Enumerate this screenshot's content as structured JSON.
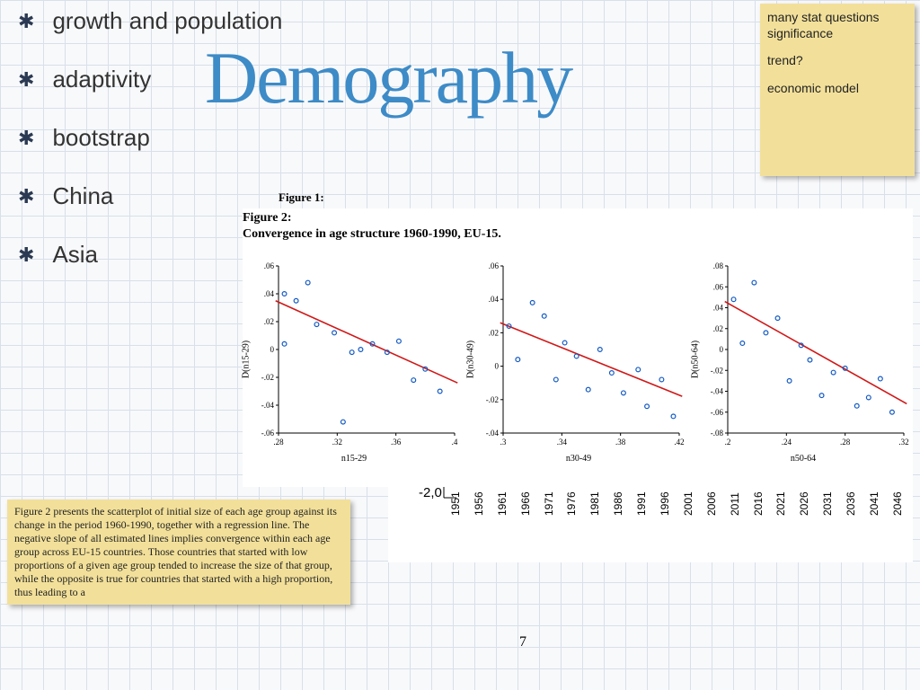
{
  "bullets": {
    "items": [
      {
        "label": "growth and population"
      },
      {
        "label": "adaptivity"
      },
      {
        "label": "bootstrap"
      },
      {
        "label": "China"
      },
      {
        "label": "Asia"
      }
    ]
  },
  "title": "Demography",
  "sticky_right": {
    "lines": [
      "many stat questions significance",
      "trend?",
      "economic model"
    ],
    "bg_color": "#f2e09a"
  },
  "sticky_bottom": {
    "text": "Figure 2 presents the scatterplot of initial size of each age group against its change in the\nperiod 1960-1990, together with a regression line. The negative slope of all estimated lines\nimplies convergence within each age group across EU-15 countries. Those countries that\nstarted with low proportions of a given age group tended to increase the size of that group,\nwhile the opposite is true for countries that started with a high proportion, thus leading to a",
    "bg_color": "#f2e09a"
  },
  "figure1_hint": "Figure 1:",
  "figure2": {
    "title_line1": "Figure 2:",
    "title_line2": "Convergence in age structure 1960-1990, EU-15.",
    "panels": [
      {
        "ylabel": "D(n15-29)",
        "xlabel": "n15-29",
        "xlim": [
          0.28,
          0.4
        ],
        "ylim": [
          -0.06,
          0.06
        ],
        "xticks": [
          0.28,
          0.32,
          0.36,
          0.4
        ],
        "yticks": [
          -0.06,
          -0.04,
          -0.02,
          0,
          0.02,
          0.04,
          0.06
        ],
        "ytick_labels": [
          "-.06",
          "-.04",
          "-.02",
          "0",
          ".02",
          ".04",
          ".06"
        ],
        "xtick_labels": [
          ".28",
          ".32",
          ".36",
          ".4"
        ],
        "points": [
          [
            0.284,
            0.04
          ],
          [
            0.292,
            0.035
          ],
          [
            0.3,
            0.048
          ],
          [
            0.306,
            0.018
          ],
          [
            0.318,
            0.012
          ],
          [
            0.324,
            -0.052
          ],
          [
            0.33,
            -0.002
          ],
          [
            0.336,
            0.0
          ],
          [
            0.344,
            0.004
          ],
          [
            0.354,
            -0.002
          ],
          [
            0.362,
            0.006
          ],
          [
            0.372,
            -0.022
          ],
          [
            0.38,
            -0.014
          ],
          [
            0.39,
            -0.03
          ],
          [
            0.284,
            0.004
          ]
        ],
        "line": {
          "x1": 0.278,
          "y1": 0.035,
          "x2": 0.402,
          "y2": -0.024
        },
        "point_color": "#1259c3",
        "line_color": "#d01818"
      },
      {
        "ylabel": "D(n30-49)",
        "xlabel": "n30-49",
        "xlim": [
          0.3,
          0.42
        ],
        "ylim": [
          -0.04,
          0.06
        ],
        "xticks": [
          0.3,
          0.34,
          0.38,
          0.42
        ],
        "yticks": [
          -0.04,
          -0.02,
          0,
          0.02,
          0.04,
          0.06
        ],
        "ytick_labels": [
          "-.04",
          "-.02",
          "0",
          ".02",
          ".04",
          ".06"
        ],
        "xtick_labels": [
          ".3",
          ".34",
          ".38",
          ".42"
        ],
        "points": [
          [
            0.304,
            0.024
          ],
          [
            0.31,
            0.004
          ],
          [
            0.32,
            0.038
          ],
          [
            0.328,
            0.03
          ],
          [
            0.336,
            -0.008
          ],
          [
            0.342,
            0.014
          ],
          [
            0.35,
            0.006
          ],
          [
            0.358,
            -0.014
          ],
          [
            0.366,
            0.01
          ],
          [
            0.374,
            -0.004
          ],
          [
            0.382,
            -0.016
          ],
          [
            0.392,
            -0.002
          ],
          [
            0.398,
            -0.024
          ],
          [
            0.408,
            -0.008
          ],
          [
            0.416,
            -0.03
          ]
        ],
        "line": {
          "x1": 0.298,
          "y1": 0.026,
          "x2": 0.422,
          "y2": -0.018
        },
        "point_color": "#1259c3",
        "line_color": "#d01818"
      },
      {
        "ylabel": "D(n50-64)",
        "xlabel": "n50-64",
        "xlim": [
          0.2,
          0.32
        ],
        "ylim": [
          -0.08,
          0.08
        ],
        "xticks": [
          0.2,
          0.24,
          0.28,
          0.32
        ],
        "yticks": [
          -0.08,
          -0.06,
          -0.04,
          -0.02,
          0,
          0.02,
          0.04,
          0.06,
          0.08
        ],
        "ytick_labels": [
          "-.08",
          "-.06",
          "-.04",
          "-.02",
          "0",
          ".02",
          ".04",
          ".06",
          ".08"
        ],
        "xtick_labels": [
          ".2",
          ".24",
          ".28",
          ".32"
        ],
        "points": [
          [
            0.204,
            0.048
          ],
          [
            0.21,
            0.006
          ],
          [
            0.218,
            0.064
          ],
          [
            0.226,
            0.016
          ],
          [
            0.234,
            0.03
          ],
          [
            0.242,
            -0.03
          ],
          [
            0.25,
            0.004
          ],
          [
            0.256,
            -0.01
          ],
          [
            0.264,
            -0.044
          ],
          [
            0.272,
            -0.022
          ],
          [
            0.28,
            -0.018
          ],
          [
            0.288,
            -0.054
          ],
          [
            0.296,
            -0.046
          ],
          [
            0.304,
            -0.028
          ],
          [
            0.312,
            -0.06
          ]
        ],
        "line": {
          "x1": 0.198,
          "y1": 0.046,
          "x2": 0.322,
          "y2": -0.052
        },
        "point_color": "#1259c3",
        "line_color": "#d01818"
      }
    ]
  },
  "background_chart": {
    "minus_label": "-2,0",
    "years": [
      "1951",
      "1956",
      "1961",
      "1966",
      "1971",
      "1976",
      "1981",
      "1986",
      "1991",
      "1996",
      "2001",
      "2006",
      "2011",
      "2016",
      "2021",
      "2026",
      "2031",
      "2036",
      "2041",
      "2046"
    ]
  },
  "page_number": "7",
  "colors": {
    "title": "#3d8bc7",
    "bullet_icon": "#2b3a52",
    "grid": "#d8e0ea"
  }
}
